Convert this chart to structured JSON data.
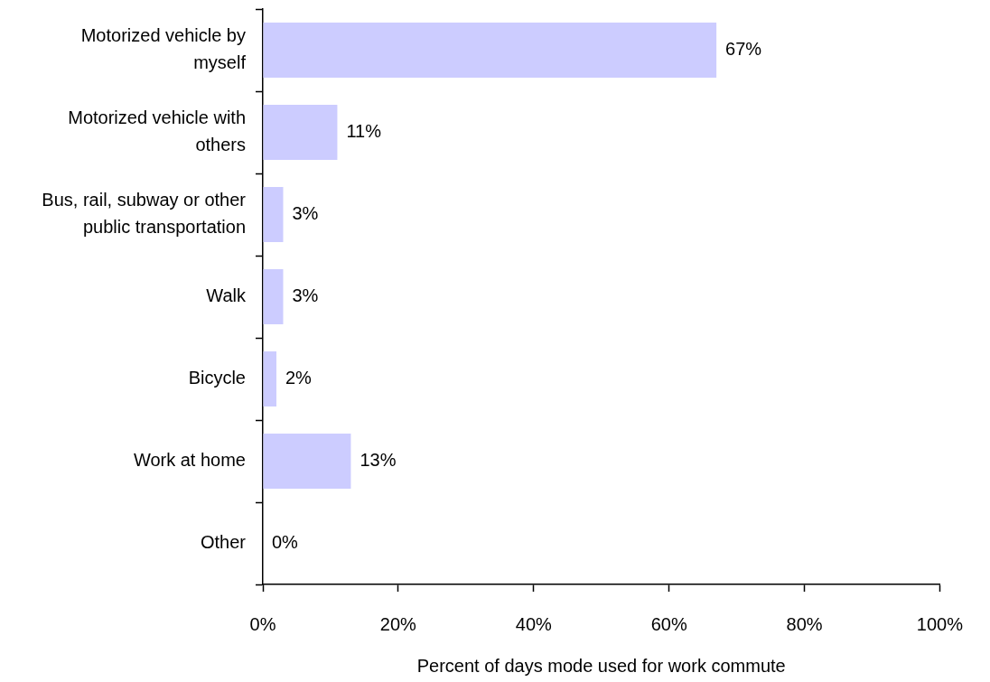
{
  "chart_data": {
    "type": "bar",
    "orientation": "horizontal",
    "categories": [
      "Motorized vehicle by myself",
      "Motorized vehicle with others",
      "Bus, rail, subway or other public transportation",
      "Walk",
      "Bicycle",
      "Work at home",
      "Other"
    ],
    "values": [
      67,
      11,
      3,
      3,
      2,
      13,
      0
    ],
    "value_labels": [
      "67%",
      "11%",
      "3%",
      "3%",
      "2%",
      "13%",
      "0%"
    ],
    "color": "#ccccff",
    "xlabel": "Percent of days mode used for work commute",
    "xlim": [
      0,
      100
    ],
    "xticks": [
      {
        "value": 0,
        "label": "0%"
      },
      {
        "value": 20,
        "label": "20%"
      },
      {
        "value": 40,
        "label": "40%"
      },
      {
        "value": 60,
        "label": "60%"
      },
      {
        "value": 80,
        "label": "80%"
      },
      {
        "value": 100,
        "label": "100%"
      }
    ],
    "grid": false,
    "legend": false
  }
}
